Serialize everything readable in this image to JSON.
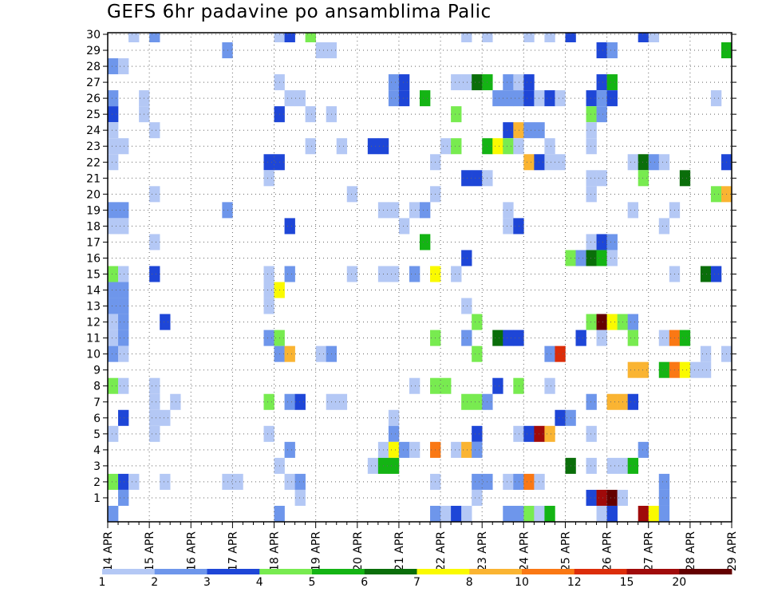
{
  "chart_data": {
    "type": "heatmap",
    "title": "GEFS 6hr padavine po ansamblima Palic",
    "xlabel": "",
    "ylabel": "",
    "x_tick_labels": [
      "14 APR",
      "15 APR",
      "16 APR",
      "17 APR",
      "18 APR",
      "19 APR",
      "20 APR",
      "21 APR",
      "22 APR",
      "23 APR",
      "24 APR",
      "25 APR",
      "26 APR",
      "27 APR",
      "28 APR",
      "29 APR"
    ],
    "y_tick_labels": [
      "1",
      "2",
      "3",
      "4",
      "5",
      "6",
      "7",
      "8",
      "9",
      "10",
      "11",
      "12",
      "13",
      "14",
      "15",
      "16",
      "17",
      "18",
      "19",
      "20",
      "21",
      "22",
      "23",
      "24",
      "25",
      "26",
      "27",
      "28",
      "29",
      "30"
    ],
    "xlim": [
      "14 APR",
      "29 APR"
    ],
    "ylim": [
      0,
      30
    ],
    "time_step_hours": 6,
    "grid": "dotted",
    "colorbar": {
      "ticks": [
        "1",
        "2",
        "3",
        "4",
        "5",
        "6",
        "7",
        "8",
        "10",
        "12",
        "15",
        "20"
      ],
      "bin_edges": [
        1,
        2,
        3,
        4,
        5,
        6,
        7,
        8,
        10,
        12,
        15,
        20
      ],
      "colors": [
        "#b4c8f5",
        "#6e96eb",
        "#1e46d7",
        "#78eb50",
        "#14b414",
        "#0a6e0a",
        "#fafa00",
        "#fab432",
        "#fa7814",
        "#dc2d0a",
        "#a00a0a",
        "#640000"
      ]
    },
    "cells_format": "[member, time_index_from_start, color_bin_index]",
    "cells": [
      [
        30,
        2,
        0
      ],
      [
        30,
        4,
        1
      ],
      [
        30,
        16,
        0
      ],
      [
        30,
        17,
        2
      ],
      [
        30,
        19,
        3
      ],
      [
        30,
        34,
        0
      ],
      [
        30,
        36,
        0
      ],
      [
        30,
        40,
        0
      ],
      [
        30,
        42,
        0
      ],
      [
        30,
        44,
        2
      ],
      [
        30,
        51,
        2
      ],
      [
        30,
        52,
        0
      ],
      [
        29,
        11,
        1
      ],
      [
        29,
        20,
        0
      ],
      [
        29,
        21,
        0
      ],
      [
        29,
        47,
        2
      ],
      [
        29,
        48,
        1
      ],
      [
        29,
        59,
        4
      ],
      [
        28,
        0,
        1
      ],
      [
        28,
        1,
        0
      ],
      [
        27,
        16,
        0
      ],
      [
        27,
        27,
        1
      ],
      [
        27,
        28,
        2
      ],
      [
        27,
        33,
        0
      ],
      [
        27,
        34,
        0
      ],
      [
        27,
        35,
        5
      ],
      [
        27,
        36,
        4
      ],
      [
        27,
        38,
        1
      ],
      [
        27,
        39,
        0
      ],
      [
        27,
        40,
        2
      ],
      [
        27,
        47,
        2
      ],
      [
        27,
        48,
        4
      ],
      [
        26,
        0,
        1
      ],
      [
        26,
        3,
        0
      ],
      [
        26,
        17,
        0
      ],
      [
        26,
        18,
        0
      ],
      [
        26,
        27,
        1
      ],
      [
        26,
        28,
        2
      ],
      [
        26,
        30,
        4
      ],
      [
        26,
        37,
        1
      ],
      [
        26,
        38,
        1
      ],
      [
        26,
        39,
        1
      ],
      [
        26,
        40,
        2
      ],
      [
        26,
        41,
        0
      ],
      [
        26,
        42,
        2
      ],
      [
        26,
        43,
        0
      ],
      [
        26,
        46,
        2
      ],
      [
        26,
        47,
        1
      ],
      [
        26,
        48,
        2
      ],
      [
        26,
        58,
        0
      ],
      [
        25,
        0,
        2
      ],
      [
        25,
        3,
        0
      ],
      [
        25,
        16,
        2
      ],
      [
        25,
        19,
        0
      ],
      [
        25,
        21,
        0
      ],
      [
        25,
        33,
        3
      ],
      [
        25,
        46,
        3
      ],
      [
        25,
        47,
        1
      ],
      [
        24,
        0,
        0
      ],
      [
        24,
        4,
        0
      ],
      [
        24,
        38,
        2
      ],
      [
        24,
        39,
        7
      ],
      [
        24,
        40,
        1
      ],
      [
        24,
        41,
        1
      ],
      [
        24,
        46,
        0
      ],
      [
        23,
        0,
        0
      ],
      [
        23,
        1,
        0
      ],
      [
        23,
        19,
        0
      ],
      [
        23,
        22,
        0
      ],
      [
        23,
        25,
        2
      ],
      [
        23,
        26,
        2
      ],
      [
        23,
        32,
        0
      ],
      [
        23,
        33,
        3
      ],
      [
        23,
        36,
        4
      ],
      [
        23,
        37,
        6
      ],
      [
        23,
        38,
        3
      ],
      [
        23,
        39,
        0
      ],
      [
        23,
        42,
        0
      ],
      [
        23,
        46,
        0
      ],
      [
        22,
        0,
        0
      ],
      [
        22,
        15,
        2
      ],
      [
        22,
        16,
        2
      ],
      [
        22,
        31,
        0
      ],
      [
        22,
        40,
        7
      ],
      [
        22,
        41,
        2
      ],
      [
        22,
        42,
        0
      ],
      [
        22,
        43,
        0
      ],
      [
        22,
        50,
        0
      ],
      [
        22,
        51,
        5
      ],
      [
        22,
        52,
        1
      ],
      [
        22,
        53,
        0
      ],
      [
        22,
        59,
        2
      ],
      [
        21,
        15,
        0
      ],
      [
        21,
        34,
        2
      ],
      [
        21,
        35,
        2
      ],
      [
        21,
        36,
        0
      ],
      [
        21,
        46,
        0
      ],
      [
        21,
        47,
        0
      ],
      [
        21,
        51,
        3
      ],
      [
        21,
        55,
        5
      ],
      [
        20,
        4,
        0
      ],
      [
        20,
        23,
        0
      ],
      [
        20,
        31,
        0
      ],
      [
        20,
        46,
        0
      ],
      [
        20,
        58,
        3
      ],
      [
        20,
        59,
        7
      ],
      [
        19,
        0,
        1
      ],
      [
        19,
        1,
        1
      ],
      [
        19,
        11,
        1
      ],
      [
        19,
        26,
        0
      ],
      [
        19,
        27,
        0
      ],
      [
        19,
        29,
        0
      ],
      [
        19,
        30,
        1
      ],
      [
        19,
        38,
        0
      ],
      [
        19,
        50,
        0
      ],
      [
        19,
        54,
        0
      ],
      [
        18,
        0,
        0
      ],
      [
        18,
        1,
        0
      ],
      [
        18,
        17,
        2
      ],
      [
        18,
        28,
        0
      ],
      [
        18,
        38,
        0
      ],
      [
        18,
        39,
        2
      ],
      [
        18,
        53,
        0
      ],
      [
        17,
        4,
        0
      ],
      [
        17,
        30,
        4
      ],
      [
        17,
        46,
        0
      ],
      [
        17,
        47,
        2
      ],
      [
        17,
        48,
        1
      ],
      [
        16,
        34,
        2
      ],
      [
        16,
        44,
        3
      ],
      [
        16,
        45,
        1
      ],
      [
        16,
        46,
        5
      ],
      [
        16,
        47,
        4
      ],
      [
        16,
        48,
        0
      ],
      [
        15,
        0,
        3
      ],
      [
        15,
        1,
        0
      ],
      [
        15,
        4,
        2
      ],
      [
        15,
        15,
        0
      ],
      [
        15,
        17,
        1
      ],
      [
        15,
        23,
        0
      ],
      [
        15,
        26,
        0
      ],
      [
        15,
        27,
        0
      ],
      [
        15,
        29,
        1
      ],
      [
        15,
        31,
        6
      ],
      [
        15,
        33,
        0
      ],
      [
        15,
        54,
        0
      ],
      [
        15,
        57,
        5
      ],
      [
        15,
        58,
        2
      ],
      [
        14,
        0,
        1
      ],
      [
        14,
        1,
        1
      ],
      [
        14,
        15,
        0
      ],
      [
        14,
        16,
        6
      ],
      [
        13,
        0,
        1
      ],
      [
        13,
        1,
        1
      ],
      [
        13,
        15,
        0
      ],
      [
        13,
        34,
        0
      ],
      [
        12,
        0,
        0
      ],
      [
        12,
        1,
        1
      ],
      [
        12,
        5,
        2
      ],
      [
        12,
        35,
        3
      ],
      [
        12,
        46,
        3
      ],
      [
        12,
        47,
        11
      ],
      [
        12,
        48,
        6
      ],
      [
        12,
        49,
        3
      ],
      [
        12,
        50,
        1
      ],
      [
        11,
        0,
        0
      ],
      [
        11,
        1,
        1
      ],
      [
        11,
        15,
        1
      ],
      [
        11,
        16,
        3
      ],
      [
        11,
        31,
        3
      ],
      [
        11,
        34,
        1
      ],
      [
        11,
        37,
        5
      ],
      [
        11,
        38,
        2
      ],
      [
        11,
        39,
        2
      ],
      [
        11,
        45,
        2
      ],
      [
        11,
        47,
        0
      ],
      [
        11,
        50,
        3
      ],
      [
        11,
        53,
        0
      ],
      [
        11,
        54,
        8
      ],
      [
        11,
        55,
        4
      ],
      [
        10,
        0,
        1
      ],
      [
        10,
        1,
        0
      ],
      [
        10,
        16,
        1
      ],
      [
        10,
        17,
        7
      ],
      [
        10,
        20,
        0
      ],
      [
        10,
        21,
        1
      ],
      [
        10,
        35,
        3
      ],
      [
        10,
        42,
        1
      ],
      [
        10,
        43,
        9
      ],
      [
        10,
        57,
        0
      ],
      [
        10,
        59,
        0
      ],
      [
        9,
        50,
        7
      ],
      [
        9,
        51,
        7
      ],
      [
        9,
        53,
        4
      ],
      [
        9,
        54,
        8
      ],
      [
        9,
        55,
        6
      ],
      [
        9,
        56,
        0
      ],
      [
        9,
        57,
        0
      ],
      [
        8,
        0,
        3
      ],
      [
        8,
        1,
        0
      ],
      [
        8,
        4,
        0
      ],
      [
        8,
        29,
        0
      ],
      [
        8,
        31,
        3
      ],
      [
        8,
        32,
        3
      ],
      [
        8,
        37,
        2
      ],
      [
        8,
        39,
        3
      ],
      [
        8,
        42,
        0
      ],
      [
        7,
        4,
        0
      ],
      [
        7,
        6,
        0
      ],
      [
        7,
        15,
        3
      ],
      [
        7,
        17,
        1
      ],
      [
        7,
        18,
        2
      ],
      [
        7,
        21,
        0
      ],
      [
        7,
        22,
        0
      ],
      [
        7,
        34,
        3
      ],
      [
        7,
        35,
        3
      ],
      [
        7,
        36,
        1
      ],
      [
        7,
        46,
        1
      ],
      [
        7,
        48,
        7
      ],
      [
        7,
        49,
        7
      ],
      [
        7,
        50,
        2
      ],
      [
        6,
        1,
        2
      ],
      [
        6,
        4,
        0
      ],
      [
        6,
        5,
        0
      ],
      [
        6,
        27,
        0
      ],
      [
        6,
        43,
        2
      ],
      [
        6,
        44,
        1
      ],
      [
        5,
        0,
        0
      ],
      [
        5,
        4,
        0
      ],
      [
        5,
        15,
        0
      ],
      [
        5,
        27,
        1
      ],
      [
        5,
        35,
        2
      ],
      [
        5,
        39,
        0
      ],
      [
        5,
        40,
        2
      ],
      [
        5,
        41,
        10
      ],
      [
        5,
        42,
        7
      ],
      [
        5,
        46,
        0
      ],
      [
        4,
        17,
        1
      ],
      [
        4,
        26,
        0
      ],
      [
        4,
        27,
        6
      ],
      [
        4,
        28,
        1
      ],
      [
        4,
        29,
        0
      ],
      [
        4,
        31,
        8
      ],
      [
        4,
        33,
        0
      ],
      [
        4,
        34,
        7
      ],
      [
        4,
        35,
        1
      ],
      [
        4,
        51,
        1
      ],
      [
        3,
        16,
        0
      ],
      [
        3,
        25,
        0
      ],
      [
        3,
        26,
        4
      ],
      [
        3,
        27,
        4
      ],
      [
        3,
        44,
        5
      ],
      [
        3,
        46,
        0
      ],
      [
        3,
        48,
        0
      ],
      [
        3,
        49,
        0
      ],
      [
        3,
        50,
        4
      ],
      [
        2,
        0,
        3
      ],
      [
        2,
        1,
        2
      ],
      [
        2,
        2,
        0
      ],
      [
        2,
        5,
        0
      ],
      [
        2,
        11,
        0
      ],
      [
        2,
        12,
        0
      ],
      [
        2,
        17,
        0
      ],
      [
        2,
        18,
        1
      ],
      [
        2,
        31,
        0
      ],
      [
        2,
        35,
        1
      ],
      [
        2,
        36,
        1
      ],
      [
        2,
        38,
        0
      ],
      [
        2,
        39,
        1
      ],
      [
        2,
        40,
        8
      ],
      [
        2,
        41,
        0
      ],
      [
        2,
        53,
        1
      ],
      [
        1,
        1,
        1
      ],
      [
        1,
        18,
        0
      ],
      [
        1,
        35,
        0
      ],
      [
        1,
        46,
        2
      ],
      [
        1,
        47,
        10
      ],
      [
        1,
        48,
        11
      ],
      [
        1,
        49,
        0
      ],
      [
        1,
        53,
        1
      ],
      [
        0,
        0,
        1
      ],
      [
        0,
        16,
        1
      ],
      [
        0,
        31,
        1
      ],
      [
        0,
        32,
        0
      ],
      [
        0,
        33,
        2
      ],
      [
        0,
        34,
        0
      ],
      [
        0,
        38,
        1
      ],
      [
        0,
        39,
        1
      ],
      [
        0,
        40,
        3
      ],
      [
        0,
        41,
        0
      ],
      [
        0,
        42,
        4
      ],
      [
        0,
        47,
        0
      ],
      [
        0,
        48,
        2
      ],
      [
        0,
        51,
        10
      ],
      [
        0,
        52,
        6
      ],
      [
        0,
        53,
        1
      ]
    ]
  }
}
